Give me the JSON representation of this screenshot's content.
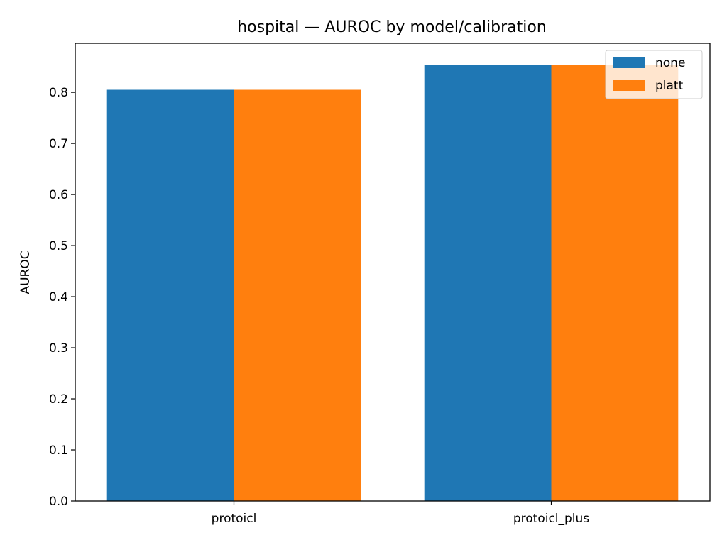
{
  "chart_data": {
    "type": "bar",
    "title": "hospital — AUROC by model/calibration",
    "xlabel": "",
    "ylabel": "AUROC",
    "categories": [
      "protoicl",
      "protoicl_plus"
    ],
    "series": [
      {
        "name": "none",
        "values": [
          0.805,
          0.853
        ],
        "color": "#1f77b4"
      },
      {
        "name": "platt",
        "values": [
          0.805,
          0.853
        ],
        "color": "#ff7f0e"
      }
    ],
    "ylim": [
      0,
      0.896
    ],
    "yticks": [
      0.0,
      0.1,
      0.2,
      0.3,
      0.4,
      0.5,
      0.6,
      0.7,
      0.8
    ],
    "ytick_labels": [
      "0.0",
      "0.1",
      "0.2",
      "0.3",
      "0.4",
      "0.5",
      "0.6",
      "0.7",
      "0.8"
    ],
    "grid": false,
    "legend_position": "top-right"
  }
}
